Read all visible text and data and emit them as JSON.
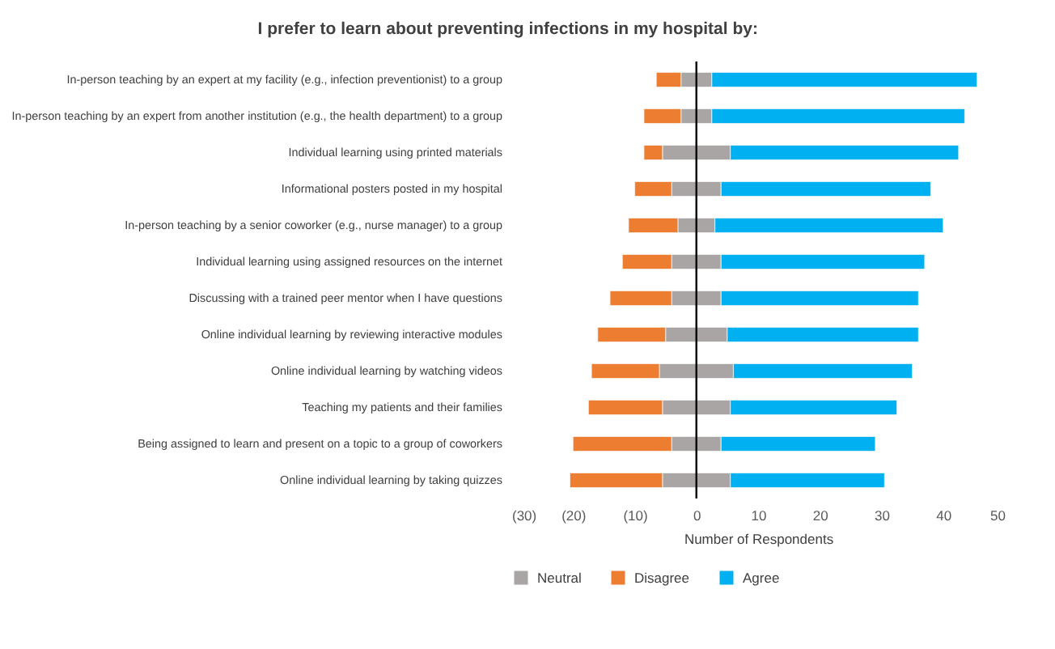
{
  "chart_data": {
    "type": "bar",
    "orientation": "horizontal",
    "stacked": true,
    "title": "I prefer to learn about preventing infections in my hospital by:",
    "xlabel": "Number of Respondents",
    "categories": [
      "In-person teaching by an expert at my facility (e.g., infection preventionist) to a group",
      "In-person teaching by an expert from another institution (e.g., the health department) to a group",
      "Individual learning using printed materials",
      "Informational posters posted in my hospital",
      "In-person teaching by a senior coworker (e.g., nurse manager) to a group",
      "Individual learning using assigned resources on the internet",
      "Discussing with a trained peer mentor when I have questions",
      "Online individual learning by reviewing interactive modules",
      "Online individual learning by watching videos",
      "Teaching my patients and their families",
      "Being assigned to learn and present on a topic to a group of coworkers",
      "Online individual learning by taking quizzes"
    ],
    "series": [
      {
        "name": "Neutral",
        "color": "#a9a5a4",
        "values": [
          -2.5,
          -2.5,
          -5.5,
          -4,
          -3,
          -4,
          -4,
          -5,
          -6,
          -5.5,
          -4,
          -5.5
        ]
      },
      {
        "name": "Disagree",
        "color": "#ed7d31",
        "values": [
          -4,
          -6,
          -3,
          -6,
          -8,
          -8,
          -10,
          -11,
          -11,
          -12,
          -16,
          -15
        ]
      },
      {
        "color": "#a9a5a4",
        "values": [
          2.5,
          2.5,
          5.5,
          4,
          3,
          4,
          4,
          5,
          6,
          5.5,
          4,
          5.5
        ]
      },
      {
        "name": "Agree",
        "color": "#00b0f0",
        "values": [
          43,
          41,
          37,
          34,
          37,
          33,
          32,
          31,
          29,
          27,
          25,
          25
        ]
      }
    ],
    "xlim": [
      -30,
      50
    ],
    "xticks": [
      {
        "value": -30,
        "label": "(30)"
      },
      {
        "value": -20,
        "label": "(20)"
      },
      {
        "value": -10,
        "label": "(10)"
      },
      0,
      10,
      20,
      30,
      40,
      50
    ],
    "ref_lines": [
      {
        "axis": "x",
        "value": 0,
        "color": "#000000"
      }
    ],
    "grid": false,
    "legend": "bottom"
  }
}
